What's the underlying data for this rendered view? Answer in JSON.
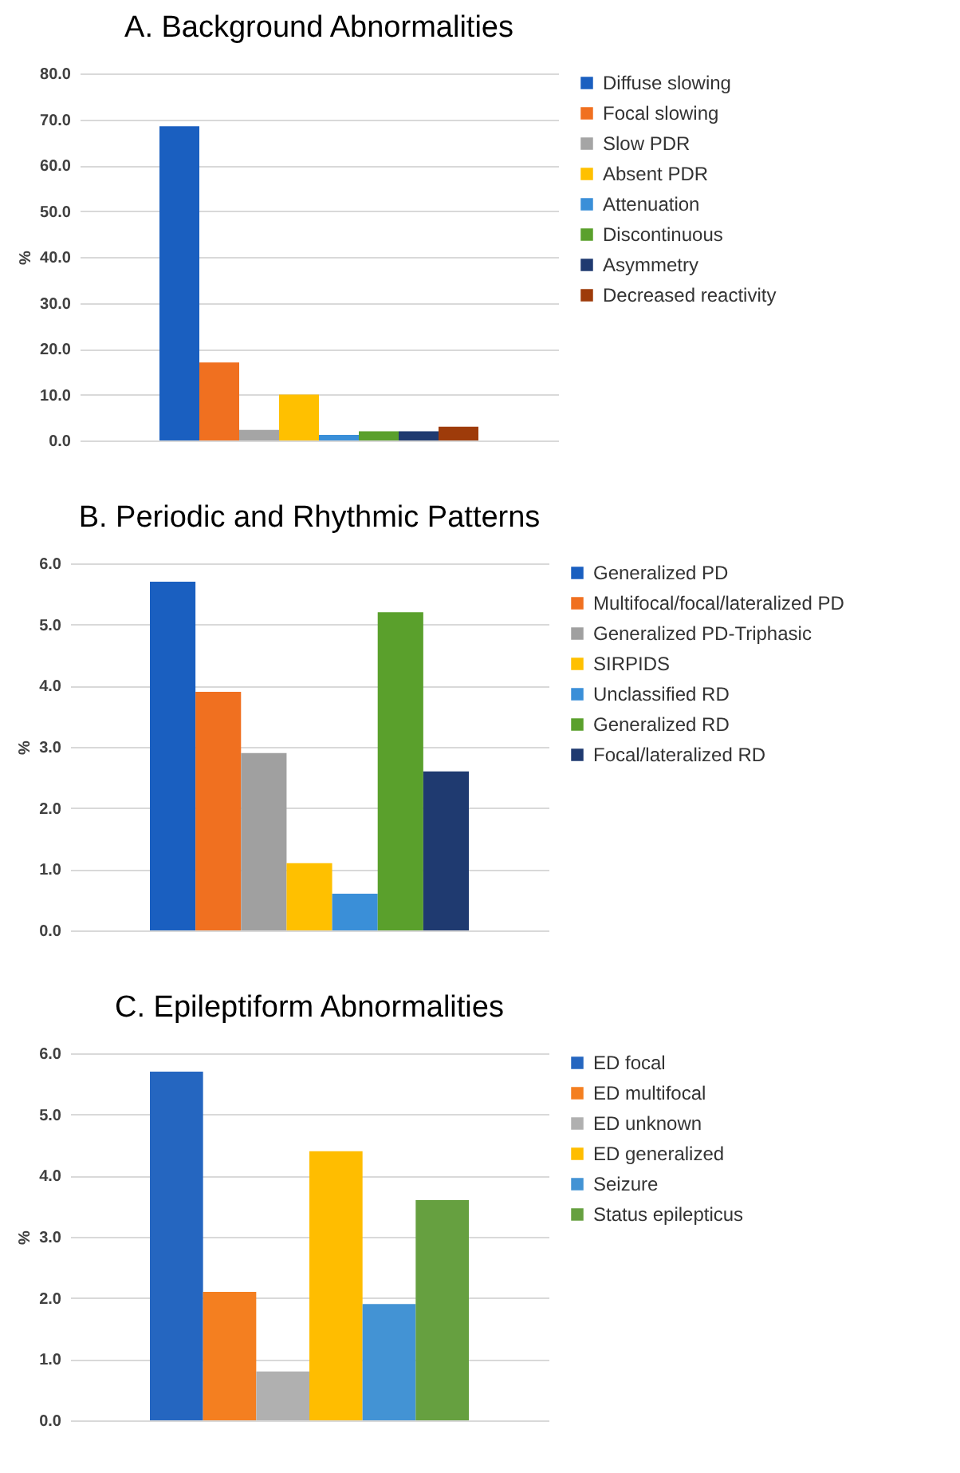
{
  "chart_data": [
    {
      "type": "bar",
      "title": "A. Background Abnormalities",
      "ylabel": "%",
      "categories": [
        null
      ],
      "ylim": [
        0,
        80
      ],
      "yticks": [
        {
          "value": 0,
          "label": "0.0"
        },
        {
          "value": 10,
          "label": "10.0"
        },
        {
          "value": 20,
          "label": "20.0"
        },
        {
          "value": 30,
          "label": "30.0"
        },
        {
          "value": 40,
          "label": "40.0"
        },
        {
          "value": 50,
          "label": "50.0"
        },
        {
          "value": 60,
          "label": "60.0"
        },
        {
          "value": 70,
          "label": "70.0"
        },
        {
          "value": 80,
          "label": "80.0"
        }
      ],
      "grid": "y",
      "legend": "right",
      "series": [
        {
          "name": "Diffuse slowing",
          "color": "#1a5fc0",
          "values": [
            68.5
          ]
        },
        {
          "name": "Focal slowing",
          "color": "#f07020",
          "values": [
            17.0
          ]
        },
        {
          "name": "Slow PDR",
          "color": "#a5a5a5",
          "values": [
            2.3
          ]
        },
        {
          "name": "Absent PDR",
          "color": "#ffc000",
          "values": [
            10.0
          ]
        },
        {
          "name": "Attenuation",
          "color": "#3a8fd8",
          "values": [
            1.2
          ]
        },
        {
          "name": "Discontinuous",
          "color": "#5aa02c",
          "values": [
            2.0
          ]
        },
        {
          "name": "Asymmetry",
          "color": "#1f3a70",
          "values": [
            2.0
          ]
        },
        {
          "name": "Decreased reactivity",
          "color": "#9e3b0a",
          "values": [
            3.0
          ]
        }
      ]
    },
    {
      "type": "bar",
      "title": "B. Periodic and Rhythmic Patterns",
      "ylabel": "%",
      "categories": [
        null
      ],
      "ylim": [
        0,
        6
      ],
      "yticks": [
        {
          "value": 0,
          "label": "0.0"
        },
        {
          "value": 1,
          "label": "1.0"
        },
        {
          "value": 2,
          "label": "2.0"
        },
        {
          "value": 3,
          "label": "3.0"
        },
        {
          "value": 4,
          "label": "4.0"
        },
        {
          "value": 5,
          "label": "5.0"
        },
        {
          "value": 6,
          "label": "6.0"
        }
      ],
      "grid": "y",
      "legend": "right",
      "series": [
        {
          "name": "Generalized PD",
          "color": "#1a5fc0",
          "values": [
            5.7
          ]
        },
        {
          "name": "Multifocal/focal/lateralized PD",
          "color": "#f07020",
          "values": [
            3.9
          ]
        },
        {
          "name": "Generalized PD-Triphasic",
          "color": "#a0a0a0",
          "values": [
            2.9
          ]
        },
        {
          "name": "SIRPIDS",
          "color": "#ffc000",
          "values": [
            1.1
          ]
        },
        {
          "name": "Unclassified RD",
          "color": "#3a8fd8",
          "values": [
            0.6
          ]
        },
        {
          "name": "Generalized RD",
          "color": "#5aa02c",
          "values": [
            5.2
          ]
        },
        {
          "name": "Focal/lateralized RD",
          "color": "#1f3a70",
          "values": [
            2.6
          ]
        }
      ]
    },
    {
      "type": "bar",
      "title": "C. Epileptiform Abnormalities",
      "ylabel": "%",
      "categories": [
        null
      ],
      "ylim": [
        0,
        6
      ],
      "yticks": [
        {
          "value": 0,
          "label": "0.0"
        },
        {
          "value": 1,
          "label": "1.0"
        },
        {
          "value": 2,
          "label": "2.0"
        },
        {
          "value": 3,
          "label": "3.0"
        },
        {
          "value": 4,
          "label": "4.0"
        },
        {
          "value": 5,
          "label": "5.0"
        },
        {
          "value": 6,
          "label": "6.0"
        }
      ],
      "grid": "y",
      "legend": "right",
      "series": [
        {
          "name": "ED focal",
          "color": "#2566c0",
          "values": [
            5.7
          ]
        },
        {
          "name": "ED multifocal",
          "color": "#f47f20",
          "values": [
            2.1
          ]
        },
        {
          "name": "ED unknown",
          "color": "#b0b0b0",
          "values": [
            0.8
          ]
        },
        {
          "name": "ED generalized",
          "color": "#ffbd00",
          "values": [
            4.4
          ]
        },
        {
          "name": "Seizure",
          "color": "#4393d4",
          "values": [
            1.9
          ]
        },
        {
          "name": "Status epilepticus",
          "color": "#66a040",
          "values": [
            3.6
          ]
        }
      ]
    }
  ]
}
